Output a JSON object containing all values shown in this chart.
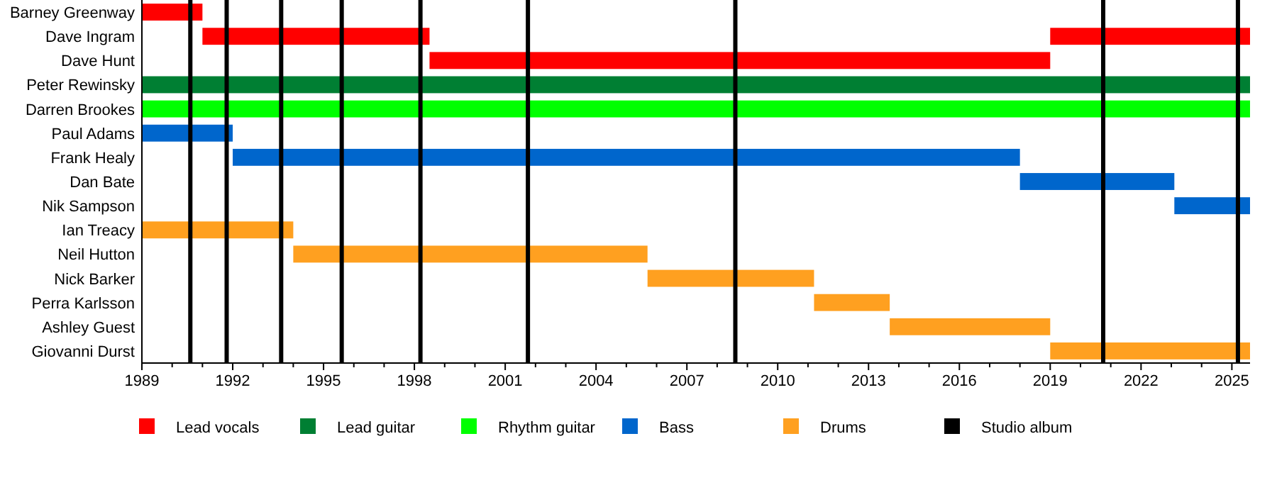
{
  "chart_data": {
    "type": "bar",
    "orientation": "horizontal",
    "legend": "bottom",
    "grid": false,
    "categories": [
      "Barney Greenway",
      "Dave Ingram",
      "Dave Hunt",
      "Peter Rewinsky",
      "Darren Brookes",
      "Paul Adams",
      "Frank Healy",
      "Dan Bate",
      "Nik Sampson",
      "Ian Treacy",
      "Neil Hutton",
      "Nick Barker",
      "Perra Karlsson",
      "Ashley Guest",
      "Giovanni Durst"
    ],
    "series": [
      {
        "name": "Lead vocals",
        "color": "#ff0000",
        "base": [
          1989,
          1991.0,
          1998.5,
          null,
          null,
          null,
          null,
          null,
          null,
          null,
          null,
          null,
          null,
          null,
          null
        ],
        "values": [
          2.0,
          7.5,
          20.5,
          null,
          null,
          null,
          null,
          null,
          null,
          null,
          null,
          null,
          null,
          null,
          null
        ]
      },
      {
        "color": "#ff0000",
        "base": [
          null,
          2019.0,
          null,
          null,
          null,
          null,
          null,
          null,
          null,
          null,
          null,
          null,
          null,
          null,
          null
        ],
        "values": [
          null,
          6.6,
          null,
          null,
          null,
          null,
          null,
          null,
          null,
          null,
          null,
          null,
          null,
          null,
          null
        ]
      },
      {
        "name": "Lead guitar",
        "color": "#007f33",
        "base": [
          null,
          null,
          null,
          1989,
          null,
          null,
          null,
          null,
          null,
          null,
          null,
          null,
          null,
          null,
          null
        ],
        "values": [
          null,
          null,
          null,
          36.6,
          null,
          null,
          null,
          null,
          null,
          null,
          null,
          null,
          null,
          null,
          null
        ]
      },
      {
        "name": "Rhythm guitar",
        "color": "#00ff00",
        "base": [
          null,
          null,
          null,
          null,
          1989,
          null,
          null,
          null,
          null,
          null,
          null,
          null,
          null,
          null,
          null
        ],
        "values": [
          null,
          null,
          null,
          null,
          36.6,
          null,
          null,
          null,
          null,
          null,
          null,
          null,
          null,
          null,
          null
        ]
      },
      {
        "name": "Bass",
        "color": "#0066cc",
        "base": [
          null,
          null,
          null,
          null,
          null,
          1989,
          1992.0,
          2018.0,
          2023.1,
          null,
          null,
          null,
          null,
          null,
          null
        ],
        "values": [
          null,
          null,
          null,
          null,
          null,
          3.0,
          26.0,
          5.1,
          2.5,
          null,
          null,
          null,
          null,
          null,
          null
        ]
      },
      {
        "name": "Drums",
        "color": "#ffa020",
        "base": [
          null,
          null,
          null,
          null,
          null,
          null,
          null,
          null,
          null,
          1989,
          1994.0,
          2005.7,
          2011.2,
          2013.7,
          2019.0
        ],
        "values": [
          null,
          null,
          null,
          null,
          null,
          null,
          null,
          null,
          null,
          5.0,
          11.7,
          5.5,
          2.5,
          5.3,
          6.6
        ]
      }
    ],
    "xlim": [
      1989,
      2025.6
    ],
    "xticks": [
      1989,
      {
        "value": 1990,
        "label": null
      },
      {
        "value": 1991,
        "label": null
      },
      1992,
      {
        "value": 1993,
        "label": null
      },
      {
        "value": 1994,
        "label": null
      },
      1995,
      {
        "value": 1996,
        "label": null
      },
      {
        "value": 1997,
        "label": null
      },
      1998,
      {
        "value": 1999,
        "label": null
      },
      {
        "value": 2000,
        "label": null
      },
      2001,
      {
        "value": 2002,
        "label": null
      },
      {
        "value": 2003,
        "label": null
      },
      2004,
      {
        "value": 2005,
        "label": null
      },
      {
        "value": 2006,
        "label": null
      },
      2007,
      {
        "value": 2008,
        "label": null
      },
      {
        "value": 2009,
        "label": null
      },
      2010,
      {
        "value": 2011,
        "label": null
      },
      {
        "value": 2012,
        "label": null
      },
      2013,
      {
        "value": 2014,
        "label": null
      },
      {
        "value": 2015,
        "label": null
      },
      2016,
      {
        "value": 2017,
        "label": null
      },
      {
        "value": 2018,
        "label": null
      },
      2019,
      {
        "value": 2020,
        "label": null
      },
      {
        "value": 2021,
        "label": null
      },
      2022,
      {
        "value": 2023,
        "label": null
      },
      {
        "value": 2024,
        "label": null
      },
      2025
    ],
    "ref_lines": [
      {
        "axis": "x",
        "value": 1990.6,
        "label": "Studio album",
        "color": "#000000"
      },
      {
        "axis": "x",
        "value": 1991.8,
        "color": "#000000"
      },
      {
        "axis": "x",
        "value": 1993.6,
        "color": "#000000"
      },
      {
        "axis": "x",
        "value": 1995.6,
        "color": "#000000"
      },
      {
        "axis": "x",
        "value": 1998.2,
        "color": "#000000"
      },
      {
        "axis": "x",
        "value": 2001.75,
        "color": "#000000"
      },
      {
        "axis": "x",
        "value": 2008.6,
        "color": "#000000"
      },
      {
        "axis": "x",
        "value": 2020.75,
        "color": "#000000"
      },
      {
        "axis": "x",
        "value": 2025.2,
        "color": "#000000"
      }
    ]
  }
}
